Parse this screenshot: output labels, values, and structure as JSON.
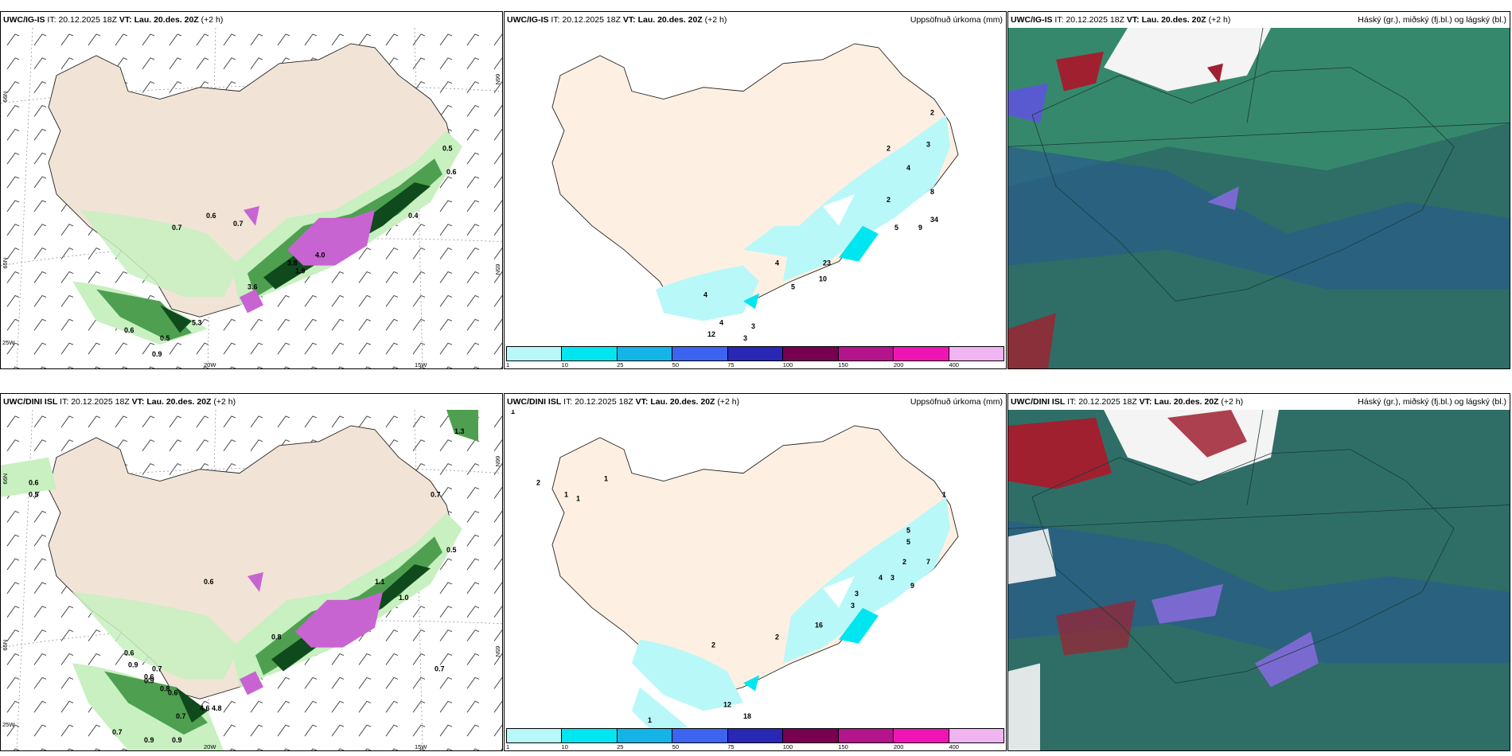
{
  "panels": [
    {
      "id": "top-left",
      "model": "UWC/IG-IS",
      "it_label": "IT:",
      "it": "20.12.2025 18Z",
      "vt_label": "VT:",
      "vt": "Lau. 20.des. 20Z",
      "lead": "(+2 h)",
      "right_title": "",
      "axis_labels": [
        "66N",
        "65N",
        "25W",
        "20W",
        "15W",
        "66N",
        "65N"
      ]
    },
    {
      "id": "top-mid",
      "model": "UWC/IG-IS",
      "it_label": "IT:",
      "it": "20.12.2025 18Z",
      "vt_label": "VT:",
      "vt": "Lau. 20.des. 20Z",
      "lead": "(+2 h)",
      "right_title": "Uppsöfnuð úrkoma (mm)"
    },
    {
      "id": "top-right",
      "model": "UWC/IG-IS",
      "it_label": "IT:",
      "it": "20.12.2025 18Z",
      "vt_label": "VT:",
      "vt": "Lau. 20.des. 20Z",
      "lead": "(+2 h)",
      "right_title": "Háský (gr.), miðský (fj.bl.) og lágský (bl.)"
    },
    {
      "id": "bottom-left",
      "model": "UWC/DINI ISL",
      "it_label": "IT:",
      "it": "20.12.2025 18Z",
      "vt_label": "VT:",
      "vt": "Lau. 20.des. 20Z",
      "lead": "(+2 h)",
      "right_title": "",
      "axis_labels": [
        "66N",
        "65N",
        "25W",
        "20W",
        "15W",
        "66N",
        "65N"
      ]
    },
    {
      "id": "bottom-mid",
      "model": "UWC/DINI ISL",
      "it_label": "IT:",
      "it": "20.12.2025 18Z",
      "vt_label": "VT:",
      "vt": "Lau. 20.des. 20Z",
      "lead": "(+2 h)",
      "right_title": "Uppsöfnuð úrkoma (mm)"
    },
    {
      "id": "bottom-right",
      "model": "UWC/DINI ISL",
      "it_label": "IT:",
      "it": "20.12.2025 18Z",
      "vt_label": "VT:",
      "vt": "Lau. 20.des. 20Z",
      "lead": "(+2 h)",
      "right_title": "Háský (gr.), miðský (fj.bl.) og lágský (bl.)"
    }
  ],
  "colorbar": {
    "ticks": [
      "1",
      "10",
      "25",
      "50",
      "75",
      "100",
      "150",
      "200",
      "400"
    ],
    "colors": [
      "#b9f8f8",
      "#00e6f0",
      "#14b4e6",
      "#3c64f0",
      "#2828b4",
      "#780050",
      "#b4148c",
      "#f014b4",
      "#f0b4f0"
    ]
  },
  "colors": {
    "land": "#f1e4d6",
    "land_precip": "#fdf0e2",
    "gust_light": "#c8f0c0",
    "gust_mid": "#4ea050",
    "gust_dark": "#0e4a1c",
    "gust_magenta": "#c864d2",
    "precip_light": "#b9f8f8",
    "cloud_base": "#2e6e66",
    "cloud_blue": "#2a5e88",
    "cloud_green": "#3c9a70",
    "cloud_red": "#a02030",
    "cloud_white": "#f4f4f4"
  },
  "tl_values": [
    "0.5",
    "0.6",
    "0.4",
    "0.6",
    "0.7",
    "0.7",
    "5.3",
    "0.6",
    "0.5",
    "0.9",
    "4.0",
    "3.8",
    "3.6",
    "1.9"
  ],
  "tm_values": [
    "2",
    "3",
    "2",
    "4",
    "8",
    "4",
    "3",
    "9",
    "5",
    "2",
    "4",
    "23",
    "10",
    "5",
    "4",
    "4",
    "12",
    "3",
    "3"
  ],
  "bl_values": [
    "0.6",
    "0.5",
    "0.6",
    "0.8",
    "0.7",
    "1.1",
    "1.0",
    "0.5",
    "0.7",
    "0.6",
    "0.9",
    "0.6",
    "0.7",
    "0.8",
    "0.9",
    "0.6",
    "0.7",
    "4.6",
    "4.8",
    "0.9",
    "0.9",
    "0.7",
    "1.3"
  ],
  "bm_values": [
    "1",
    "1",
    "2",
    "1",
    "1",
    "1",
    "1",
    "5",
    "5",
    "7",
    "2",
    "3",
    "4",
    "9",
    "3",
    "3",
    "16",
    "2",
    "2",
    "12",
    "1",
    "18"
  ]
}
